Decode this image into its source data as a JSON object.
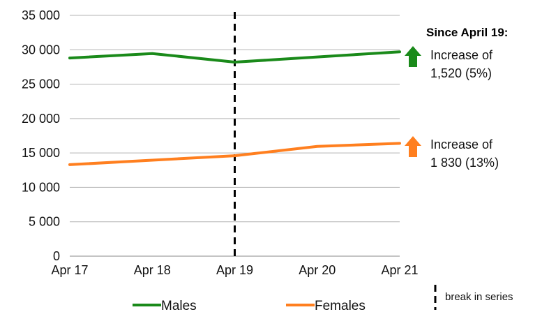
{
  "chart_data": {
    "type": "line",
    "categories": [
      "Apr 17",
      "Apr 18",
      "Apr 19",
      "Apr 20",
      "Apr 21"
    ],
    "series": [
      {
        "name": "Males",
        "values": [
          28800,
          29450,
          28200,
          28950,
          29700
        ],
        "color": "#1a8a1a"
      },
      {
        "name": "Females",
        "values": [
          13300,
          13950,
          14600,
          15950,
          16400
        ],
        "color": "#ff7f1f"
      }
    ],
    "ylim": [
      0,
      35000
    ],
    "yticks": [
      "0",
      "5 000",
      "10 000",
      "15 000",
      "20 000",
      "25 000",
      "30 000",
      "35 000"
    ],
    "grid": true,
    "legend_position": "bottom",
    "break_category": "Apr 19",
    "break_label": "break in series",
    "annotations": {
      "heading": "Since April 19:",
      "males": {
        "line1": "Increase of",
        "line2": "1,520 (5%)",
        "color": "#1a8a1a",
        "icon": "up-arrow-icon"
      },
      "females": {
        "line1": "Increase of",
        "line2": "1 830 (13%)",
        "color": "#ff7f1f",
        "icon": "up-arrow-icon"
      }
    }
  }
}
